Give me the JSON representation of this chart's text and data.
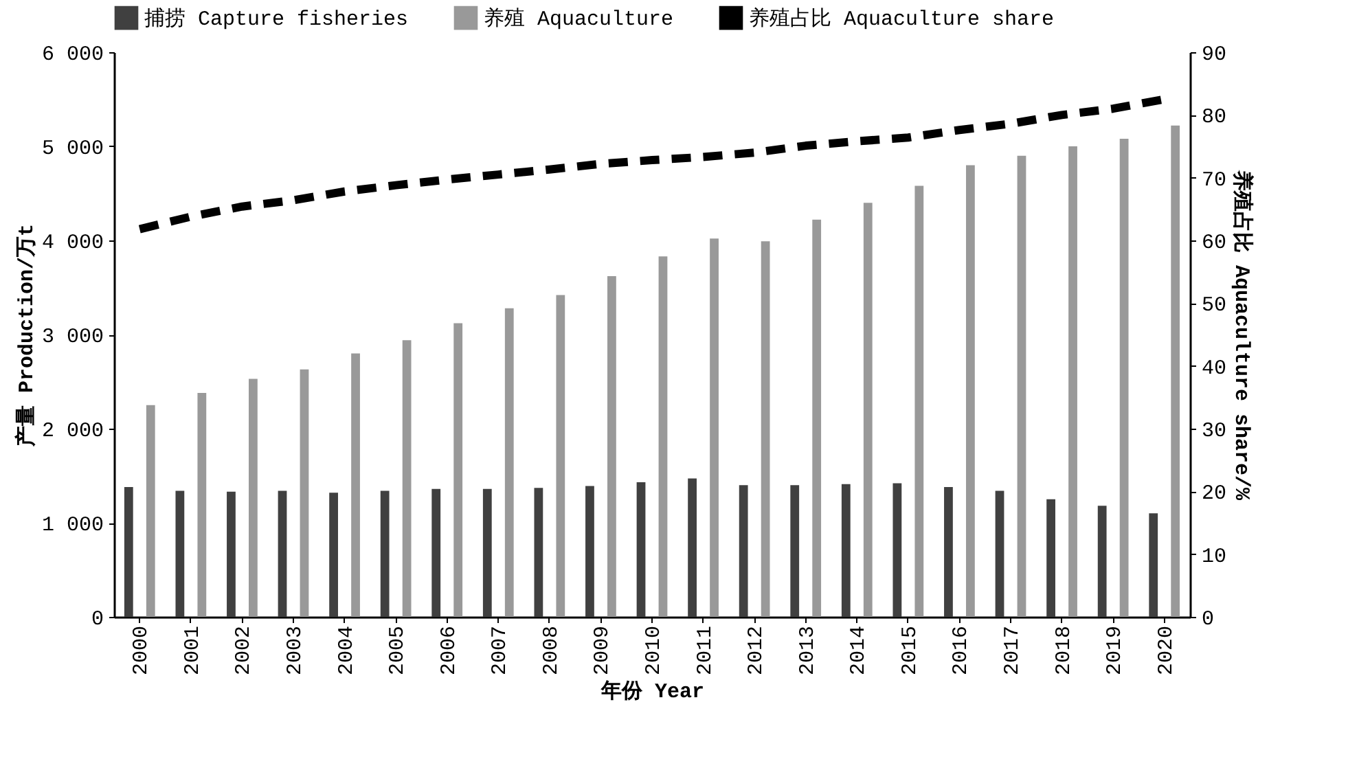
{
  "chart_data": {
    "type": "bar",
    "xlabel": "年份 Year",
    "ylabel": "产量 Production/万t",
    "y2label": "养殖占比 Aquaculture share/%",
    "categories": [
      "2000",
      "2001",
      "2002",
      "2003",
      "2004",
      "2005",
      "2006",
      "2007",
      "2008",
      "2009",
      "2010",
      "2011",
      "2012",
      "2013",
      "2014",
      "2015",
      "2016",
      "2017",
      "2018",
      "2019",
      "2020"
    ],
    "series": [
      {
        "name": "捕捞 Capture fisheries",
        "color": "#404040",
        "values": [
          1380,
          1340,
          1330,
          1340,
          1320,
          1340,
          1360,
          1360,
          1370,
          1390,
          1430,
          1470,
          1400,
          1400,
          1410,
          1420,
          1380,
          1340,
          1250,
          1180,
          1100
        ]
      },
      {
        "name": "养殖 Aquaculture",
        "color": "#999999",
        "values": [
          2250,
          2380,
          2530,
          2630,
          2800,
          2940,
          3120,
          3280,
          3420,
          3620,
          3830,
          4020,
          3990,
          4220,
          4400,
          4580,
          4800,
          4900,
          5000,
          5080,
          5220
        ]
      },
      {
        "name": "养殖占比 Aquaculture share",
        "type": "line",
        "axis": "y2",
        "color": "#000000",
        "line_style": "dashed",
        "values": [
          61.8,
          63.8,
          65.4,
          66.4,
          67.8,
          68.8,
          69.7,
          70.5,
          71.3,
          72.2,
          72.8,
          73.3,
          74.0,
          75.1,
          75.8,
          76.4,
          77.6,
          78.6,
          80.0,
          81.0,
          82.5
        ]
      }
    ],
    "ylim": [
      0,
      6000
    ],
    "yticks": [
      0,
      {
        "value": 1000,
        "label": "1 000"
      },
      {
        "value": 2000,
        "label": "2 000"
      },
      {
        "value": 3000,
        "label": "3 000"
      },
      {
        "value": 4000,
        "label": "4 000"
      },
      {
        "value": 5000,
        "label": "5 000"
      },
      {
        "value": 6000,
        "label": "6 000"
      }
    ],
    "y2lim": [
      0,
      90
    ],
    "y2ticks": [
      0,
      10,
      20,
      30,
      40,
      50,
      60,
      70,
      80,
      90
    ],
    "legend": "top",
    "grid": false
  }
}
